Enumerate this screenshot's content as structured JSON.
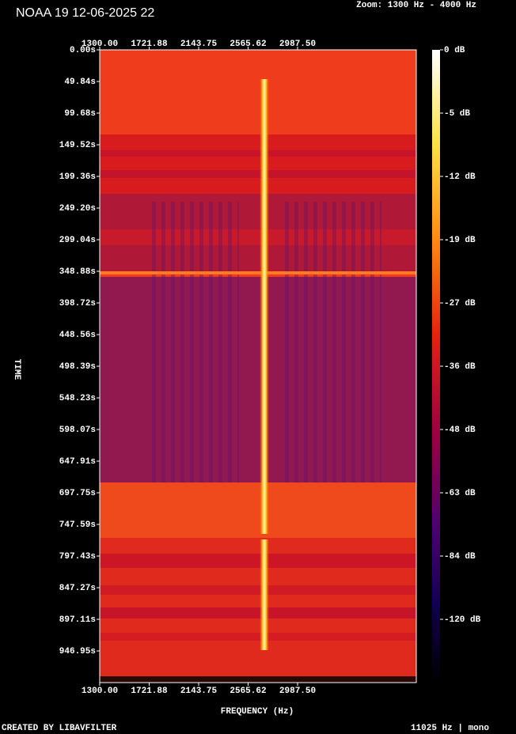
{
  "chart_data": {
    "type": "spectrogram",
    "title": "NOAA 19 12-06-2025 22",
    "subtitle": "Zoom: 1300 Hz - 4000 Hz",
    "x_label": "FREQUENCY (Hz)",
    "y_label": "TIME",
    "footer_left": "CREATED BY LIBAVFILTER",
    "footer_right": "11025 Hz | mono",
    "xlim": [
      1300,
      4000
    ],
    "xticks": [
      {
        "value": 1300,
        "label": "1300.00"
      },
      {
        "value": 1721.88,
        "label": "1721.88"
      },
      {
        "value": 2143.75,
        "label": "2143.75"
      },
      {
        "value": 2565.62,
        "label": "2565.62"
      },
      {
        "value": 2987.5,
        "label": "2987.50"
      }
    ],
    "ylim": [
      0,
      996.8
    ],
    "yticks": [
      {
        "value": 0,
        "label": "0.00s"
      },
      {
        "value": 49.84,
        "label": "49.84s"
      },
      {
        "value": 99.68,
        "label": "99.68s"
      },
      {
        "value": 149.52,
        "label": "149.52s"
      },
      {
        "value": 199.36,
        "label": "199.36s"
      },
      {
        "value": 249.2,
        "label": "249.20s"
      },
      {
        "value": 299.04,
        "label": "299.04s"
      },
      {
        "value": 348.88,
        "label": "348.88s"
      },
      {
        "value": 398.72,
        "label": "398.72s"
      },
      {
        "value": 448.56,
        "label": "448.56s"
      },
      {
        "value": 498.39,
        "label": "498.39s"
      },
      {
        "value": 548.23,
        "label": "548.23s"
      },
      {
        "value": 598.07,
        "label": "598.07s"
      },
      {
        "value": 647.91,
        "label": "647.91s"
      },
      {
        "value": 697.75,
        "label": "697.75s"
      },
      {
        "value": 747.59,
        "label": "747.59s"
      },
      {
        "value": 797.43,
        "label": "797.43s"
      },
      {
        "value": 847.27,
        "label": "847.27s"
      },
      {
        "value": 897.11,
        "label": "897.11s"
      },
      {
        "value": 946.95,
        "label": "946.95s"
      }
    ],
    "colorbar_ticks": [
      {
        "value": 0,
        "label": "0 dB"
      },
      {
        "value": -5,
        "label": "-5 dB"
      },
      {
        "value": -12,
        "label": "-12 dB"
      },
      {
        "value": -19,
        "label": "-19 dB"
      },
      {
        "value": -27,
        "label": "-27 dB"
      },
      {
        "value": -36,
        "label": "-36 dB"
      },
      {
        "value": -48,
        "label": "-48 dB"
      },
      {
        "value": -63,
        "label": "-63 dB"
      },
      {
        "value": -84,
        "label": "-84 dB"
      },
      {
        "value": -120,
        "label": "-120 dB"
      }
    ]
  }
}
